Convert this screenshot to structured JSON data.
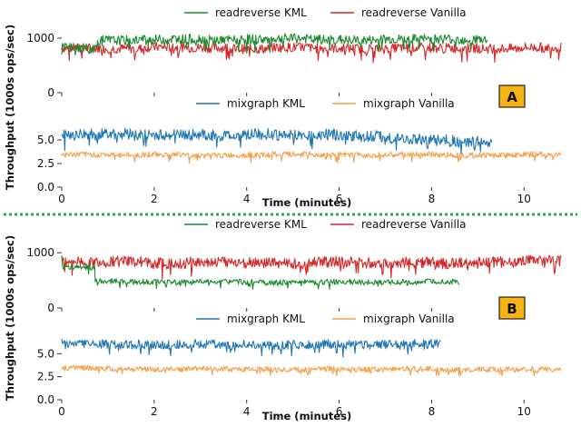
{
  "figure": {
    "ylabel": "Throughput (1000s ops/sec)",
    "xlabel": "Time (minutes)",
    "x_ticks": [
      "0",
      "2",
      "4",
      "6",
      "8",
      "10"
    ],
    "colors": {
      "readreverse_kml": "#1a8a2e",
      "readreverse_vanilla": "#d62728",
      "mixgraph_kml": "#1f77b4",
      "mixgraph_vanilla": "#f5a04a",
      "divider": "#2ea84a",
      "badge_fill": "#f6b414"
    }
  },
  "panels": [
    {
      "badge": "A",
      "top_legend": [
        "readreverse KML",
        "readreverse Vanilla"
      ],
      "top_ticks": [
        "1000",
        "0"
      ],
      "bottom_legend": [
        "mixgraph KML",
        "mixgraph Vanilla"
      ],
      "bottom_ticks": [
        "5.0",
        "2.5",
        "0.0"
      ]
    },
    {
      "badge": "B",
      "top_legend": [
        "readreverse KML",
        "readreverse Vanilla"
      ],
      "top_ticks": [
        "1000",
        "0"
      ],
      "bottom_legend": [
        "mixgraph KML",
        "mixgraph Vanilla"
      ],
      "bottom_ticks": [
        "5.0",
        "2.5",
        "0.0"
      ]
    }
  ],
  "chart_data": [
    {
      "type": "line",
      "title": "",
      "xlabel": "Time (minutes)",
      "ylabel": "Throughput (1000s ops/sec)",
      "xlim": [
        0,
        10.8
      ],
      "ylim": [
        0,
        1200
      ],
      "series": [
        {
          "name": "readreverse KML",
          "x_end": 9.2,
          "mean": 970,
          "amplitude": 90,
          "values_sample": [
            700,
            950,
            980,
            1000,
            960,
            990,
            1010,
            970,
            950,
            990,
            1000,
            980
          ]
        },
        {
          "name": "readreverse Vanilla",
          "x_end": 10.8,
          "mean": 820,
          "amplitude": 90,
          "values_sample": [
            820,
            800,
            850,
            830,
            790,
            840,
            810,
            800,
            830,
            820,
            800,
            840
          ]
        }
      ]
    },
    {
      "type": "line",
      "title": "",
      "xlabel": "Time (minutes)",
      "ylabel": "Throughput (1000s ops/sec)",
      "xlim": [
        0,
        10.8
      ],
      "ylim": [
        0,
        7.5
      ],
      "series": [
        {
          "name": "mixgraph KML",
          "x_end": 9.3,
          "mean": 5.5,
          "amplitude": 0.6,
          "values_sample": [
            5.6,
            5.8,
            5.5,
            5.6,
            5.4,
            5.7,
            5.5,
            5.6,
            5.3,
            4.8,
            4.5,
            4.2
          ]
        },
        {
          "name": "mixgraph Vanilla",
          "x_end": 10.8,
          "mean": 3.4,
          "amplitude": 0.3,
          "values_sample": [
            3.5,
            3.4,
            3.5,
            3.3,
            3.4,
            3.5,
            3.4,
            3.4,
            3.5,
            3.4,
            3.4,
            3.5
          ]
        }
      ]
    },
    {
      "type": "line",
      "title": "",
      "xlabel": "Time (minutes)",
      "ylabel": "Throughput (1000s ops/sec)",
      "xlim": [
        0,
        10.8
      ],
      "ylim": [
        0,
        1200
      ],
      "series": [
        {
          "name": "readreverse KML",
          "x_end": 8.6,
          "mean": 470,
          "amplitude": 50,
          "values_sample": [
            950,
            500,
            470,
            460,
            480,
            470,
            450,
            470,
            480,
            460,
            470,
            480
          ]
        },
        {
          "name": "readreverse Vanilla",
          "x_end": 10.8,
          "mean": 820,
          "amplitude": 100,
          "values_sample": [
            830,
            860,
            800,
            840,
            820,
            790,
            850,
            810,
            830,
            800,
            840,
            880
          ]
        }
      ]
    },
    {
      "type": "line",
      "title": "",
      "xlabel": "Time (minutes)",
      "ylabel": "Throughput (1000s ops/sec)",
      "xlim": [
        0,
        10.8
      ],
      "ylim": [
        0,
        7.5
      ],
      "series": [
        {
          "name": "mixgraph KML",
          "x_end": 8.2,
          "mean": 6.0,
          "amplitude": 0.5,
          "values_sample": [
            6.3,
            6.1,
            6.0,
            5.9,
            6.1,
            6.0,
            5.8,
            6.0,
            6.1,
            5.9,
            6.0,
            6.2
          ]
        },
        {
          "name": "mixgraph Vanilla",
          "x_end": 10.8,
          "mean": 3.3,
          "amplitude": 0.3,
          "values_sample": [
            3.6,
            3.4,
            3.3,
            3.4,
            3.3,
            3.2,
            3.4,
            3.3,
            3.4,
            3.2,
            3.3,
            3.3
          ]
        }
      ]
    }
  ]
}
